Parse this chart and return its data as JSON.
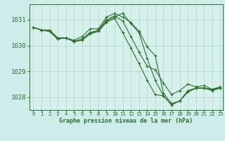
{
  "title": "Graphe pression niveau de la mer (hPa)",
  "bg_color": "#cdecea",
  "plot_bg_color": "#d8f0ec",
  "grid_color": "#a8d8d0",
  "line_color": "#2d6e2d",
  "marker_color": "#2d6e2d",
  "ylim": [
    1027.5,
    1031.6
  ],
  "xlim": [
    -0.5,
    23.3
  ],
  "yticks": [
    1028,
    1029,
    1030,
    1031
  ],
  "xticks": [
    0,
    1,
    2,
    3,
    4,
    5,
    6,
    7,
    8,
    9,
    10,
    11,
    12,
    13,
    14,
    15,
    16,
    17,
    18,
    19,
    20,
    21,
    22,
    23
  ],
  "series": [
    [
      1030.7,
      1030.6,
      1030.6,
      1030.3,
      1030.3,
      1030.2,
      1030.35,
      1030.65,
      1030.65,
      1031.1,
      1031.25,
      1031.1,
      1030.9,
      1030.55,
      1029.95,
      1029.6,
      1028.15,
      1027.75,
      1027.85,
      1028.25,
      1028.35,
      1028.35,
      1028.3,
      1028.35
    ],
    [
      1030.7,
      1030.6,
      1030.55,
      1030.25,
      1030.3,
      1030.15,
      1030.2,
      1030.45,
      1030.55,
      1030.9,
      1031.05,
      1030.5,
      1029.9,
      1029.3,
      1028.65,
      1028.1,
      1028.05,
      1027.7,
      1027.85,
      1028.2,
      1028.35,
      1028.35,
      1028.25,
      1028.35
    ],
    [
      1030.7,
      1030.6,
      1030.55,
      1030.25,
      1030.3,
      1030.15,
      1030.25,
      1030.5,
      1030.55,
      1030.95,
      1031.1,
      1031.25,
      1030.85,
      1030.5,
      1029.5,
      1028.65,
      1028.05,
      1027.7,
      1027.85,
      1028.2,
      1028.35,
      1028.35,
      1028.3,
      1028.35
    ],
    [
      1030.7,
      1030.6,
      1030.55,
      1030.25,
      1030.3,
      1030.15,
      1030.25,
      1030.5,
      1030.6,
      1031.0,
      1031.15,
      1030.95,
      1030.35,
      1029.75,
      1029.2,
      1029.05,
      1028.55,
      1028.1,
      1028.25,
      1028.5,
      1028.4,
      1028.45,
      1028.3,
      1028.4
    ]
  ],
  "xlabel_fontsize": 6.0,
  "ytick_fontsize": 6.5,
  "xtick_fontsize": 5.2
}
